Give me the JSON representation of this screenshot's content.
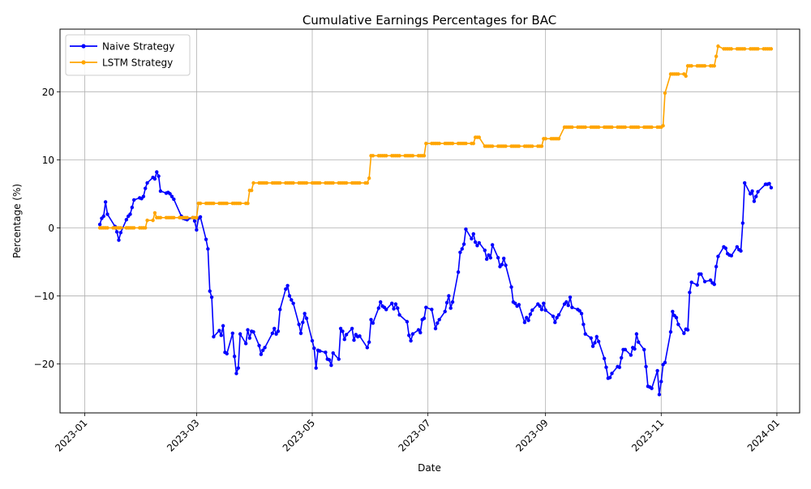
{
  "chart_data": {
    "type": "line",
    "title": "Cumulative Earnings Percentages for BAC",
    "xlabel": "Date",
    "ylabel": "Percentage (%)",
    "x_ticks": [
      "2023-01",
      "2023-03",
      "2023-05",
      "2023-07",
      "2023-09",
      "2023-11",
      "2024-01"
    ],
    "y_ticks": [
      -20,
      -10,
      0,
      10,
      20
    ],
    "xlim": [
      "2022-12-19",
      "2024-01-13"
    ],
    "ylim": [
      -27.2,
      29.2
    ],
    "grid": true,
    "legend_position": "upper-left",
    "series": [
      {
        "name": "Naive Strategy",
        "color": "#0000ff",
        "points": [
          [
            "2023-01-09",
            0.5
          ],
          [
            "2023-01-10",
            1.4
          ],
          [
            "2023-01-11",
            1.7
          ],
          [
            "2023-01-12",
            3.8
          ],
          [
            "2023-01-13",
            2.0
          ],
          [
            "2023-01-17",
            0.2
          ],
          [
            "2023-01-18",
            -0.6
          ],
          [
            "2023-01-19",
            -1.8
          ],
          [
            "2023-01-20",
            -0.7
          ],
          [
            "2023-01-23",
            1.2
          ],
          [
            "2023-01-24",
            1.7
          ],
          [
            "2023-01-25",
            2.0
          ],
          [
            "2023-01-26",
            3.0
          ],
          [
            "2023-01-27",
            4.1
          ],
          [
            "2023-01-30",
            4.4
          ],
          [
            "2023-01-31",
            4.3
          ],
          [
            "2023-02-01",
            4.6
          ],
          [
            "2023-02-02",
            5.8
          ],
          [
            "2023-02-03",
            6.6
          ],
          [
            "2023-02-06",
            7.4
          ],
          [
            "2023-02-07",
            7.2
          ],
          [
            "2023-02-08",
            8.2
          ],
          [
            "2023-02-09",
            7.6
          ],
          [
            "2023-02-10",
            5.4
          ],
          [
            "2023-02-13",
            5.1
          ],
          [
            "2023-02-14",
            5.2
          ],
          [
            "2023-02-15",
            5.0
          ],
          [
            "2023-02-16",
            4.6
          ],
          [
            "2023-02-17",
            4.2
          ],
          [
            "2023-02-21",
            1.7
          ],
          [
            "2023-02-22",
            1.4
          ],
          [
            "2023-02-23",
            1.3
          ],
          [
            "2023-02-24",
            1.2
          ],
          [
            "2023-02-27",
            1.5
          ],
          [
            "2023-02-28",
            1.0
          ],
          [
            "2023-03-01",
            -0.3
          ],
          [
            "2023-03-02",
            1.4
          ],
          [
            "2023-03-03",
            1.6
          ],
          [
            "2023-03-06",
            -1.7
          ],
          [
            "2023-03-07",
            -3.1
          ],
          [
            "2023-03-08",
            -9.3
          ],
          [
            "2023-03-09",
            -10.2
          ],
          [
            "2023-03-10",
            -16.0
          ],
          [
            "2023-03-13",
            -15.1
          ],
          [
            "2023-03-14",
            -15.8
          ],
          [
            "2023-03-15",
            -14.4
          ],
          [
            "2023-03-16",
            -18.3
          ],
          [
            "2023-03-17",
            -18.5
          ],
          [
            "2023-03-20",
            -15.5
          ],
          [
            "2023-03-21",
            -18.9
          ],
          [
            "2023-03-22",
            -21.4
          ],
          [
            "2023-03-23",
            -20.6
          ],
          [
            "2023-03-24",
            -15.6
          ],
          [
            "2023-03-27",
            -17.0
          ],
          [
            "2023-03-28",
            -15.0
          ],
          [
            "2023-03-29",
            -16.2
          ],
          [
            "2023-03-30",
            -15.2
          ],
          [
            "2023-03-31",
            -15.3
          ],
          [
            "2023-04-03",
            -17.3
          ],
          [
            "2023-04-04",
            -18.6
          ],
          [
            "2023-04-05",
            -18.0
          ],
          [
            "2023-04-06",
            -17.6
          ],
          [
            "2023-04-10",
            -15.5
          ],
          [
            "2023-04-11",
            -14.8
          ],
          [
            "2023-04-12",
            -15.6
          ],
          [
            "2023-04-13",
            -15.2
          ],
          [
            "2023-04-14",
            -12.0
          ],
          [
            "2023-04-17",
            -9.0
          ],
          [
            "2023-04-18",
            -8.5
          ],
          [
            "2023-04-19",
            -10.0
          ],
          [
            "2023-04-20",
            -10.6
          ],
          [
            "2023-04-21",
            -11.1
          ],
          [
            "2023-04-24",
            -14.2
          ],
          [
            "2023-04-25",
            -15.5
          ],
          [
            "2023-04-26",
            -13.9
          ],
          [
            "2023-04-27",
            -12.6
          ],
          [
            "2023-04-28",
            -13.3
          ],
          [
            "2023-05-01",
            -16.6
          ],
          [
            "2023-05-02",
            -17.7
          ],
          [
            "2023-05-03",
            -20.6
          ],
          [
            "2023-05-04",
            -18.0
          ],
          [
            "2023-05-05",
            -18.1
          ],
          [
            "2023-05-08",
            -18.3
          ],
          [
            "2023-05-09",
            -19.3
          ],
          [
            "2023-05-10",
            -19.4
          ],
          [
            "2023-05-11",
            -20.2
          ],
          [
            "2023-05-12",
            -18.4
          ],
          [
            "2023-05-15",
            -19.3
          ],
          [
            "2023-05-16",
            -14.8
          ],
          [
            "2023-05-17",
            -15.2
          ],
          [
            "2023-05-18",
            -16.4
          ],
          [
            "2023-05-19",
            -15.7
          ],
          [
            "2023-05-22",
            -14.8
          ],
          [
            "2023-05-23",
            -16.5
          ],
          [
            "2023-05-24",
            -15.7
          ],
          [
            "2023-05-25",
            -16.0
          ],
          [
            "2023-05-26",
            -15.9
          ],
          [
            "2023-05-30",
            -17.6
          ],
          [
            "2023-05-31",
            -16.8
          ],
          [
            "2023-06-01",
            -13.5
          ],
          [
            "2023-06-02",
            -14.0
          ],
          [
            "2023-06-05",
            -11.8
          ],
          [
            "2023-06-06",
            -10.9
          ],
          [
            "2023-06-07",
            -11.5
          ],
          [
            "2023-06-08",
            -11.7
          ],
          [
            "2023-06-09",
            -12.0
          ],
          [
            "2023-06-12",
            -11.1
          ],
          [
            "2023-06-13",
            -11.9
          ],
          [
            "2023-06-14",
            -11.2
          ],
          [
            "2023-06-15",
            -11.8
          ],
          [
            "2023-06-16",
            -12.8
          ],
          [
            "2023-06-20",
            -13.8
          ],
          [
            "2023-06-21",
            -15.8
          ],
          [
            "2023-06-22",
            -16.6
          ],
          [
            "2023-06-23",
            -15.6
          ],
          [
            "2023-06-26",
            -15.0
          ],
          [
            "2023-06-27",
            -15.4
          ],
          [
            "2023-06-28",
            -13.5
          ],
          [
            "2023-06-29",
            -13.3
          ],
          [
            "2023-06-30",
            -11.7
          ],
          [
            "2023-07-03",
            -12.0
          ],
          [
            "2023-07-05",
            -14.8
          ],
          [
            "2023-07-06",
            -14.0
          ],
          [
            "2023-07-07",
            -13.5
          ],
          [
            "2023-07-10",
            -12.3
          ],
          [
            "2023-07-11",
            -11.0
          ],
          [
            "2023-07-12",
            -10.0
          ],
          [
            "2023-07-13",
            -11.8
          ],
          [
            "2023-07-14",
            -10.9
          ],
          [
            "2023-07-17",
            -6.5
          ],
          [
            "2023-07-18",
            -3.6
          ],
          [
            "2023-07-19",
            -3.1
          ],
          [
            "2023-07-20",
            -2.4
          ],
          [
            "2023-07-21",
            -0.2
          ],
          [
            "2023-07-24",
            -1.6
          ],
          [
            "2023-07-25",
            -0.9
          ],
          [
            "2023-07-26",
            -2.1
          ],
          [
            "2023-07-27",
            -2.6
          ],
          [
            "2023-07-28",
            -2.2
          ],
          [
            "2023-07-31",
            -3.3
          ],
          [
            "2023-08-01",
            -4.6
          ],
          [
            "2023-08-02",
            -4.0
          ],
          [
            "2023-08-03",
            -4.4
          ],
          [
            "2023-08-04",
            -2.5
          ],
          [
            "2023-08-07",
            -4.4
          ],
          [
            "2023-08-08",
            -5.7
          ],
          [
            "2023-08-09",
            -5.4
          ],
          [
            "2023-08-10",
            -4.5
          ],
          [
            "2023-08-11",
            -5.5
          ],
          [
            "2023-08-14",
            -8.7
          ],
          [
            "2023-08-15",
            -10.9
          ],
          [
            "2023-08-16",
            -11.1
          ],
          [
            "2023-08-17",
            -11.5
          ],
          [
            "2023-08-18",
            -11.3
          ],
          [
            "2023-08-21",
            -13.9
          ],
          [
            "2023-08-22",
            -13.2
          ],
          [
            "2023-08-23",
            -13.6
          ],
          [
            "2023-08-24",
            -12.7
          ],
          [
            "2023-08-25",
            -12.1
          ],
          [
            "2023-08-28",
            -11.2
          ],
          [
            "2023-08-29",
            -11.5
          ],
          [
            "2023-08-30",
            -12.0
          ],
          [
            "2023-08-31",
            -11.1
          ],
          [
            "2023-09-01",
            -12.1
          ],
          [
            "2023-09-05",
            -13.0
          ],
          [
            "2023-09-06",
            -13.9
          ],
          [
            "2023-09-07",
            -13.2
          ],
          [
            "2023-09-08",
            -12.8
          ],
          [
            "2023-09-11",
            -11.2
          ],
          [
            "2023-09-12",
            -10.9
          ],
          [
            "2023-09-13",
            -11.4
          ],
          [
            "2023-09-14",
            -10.2
          ],
          [
            "2023-09-15",
            -11.7
          ],
          [
            "2023-09-18",
            -12.0
          ],
          [
            "2023-09-19",
            -12.2
          ],
          [
            "2023-09-20",
            -12.6
          ],
          [
            "2023-09-21",
            -14.2
          ],
          [
            "2023-09-22",
            -15.6
          ],
          [
            "2023-09-25",
            -16.2
          ],
          [
            "2023-09-26",
            -17.4
          ],
          [
            "2023-09-27",
            -16.9
          ],
          [
            "2023-09-28",
            -16.0
          ],
          [
            "2023-09-29",
            -16.7
          ],
          [
            "2023-10-02",
            -19.2
          ],
          [
            "2023-10-03",
            -20.5
          ],
          [
            "2023-10-04",
            -22.1
          ],
          [
            "2023-10-05",
            -22.0
          ],
          [
            "2023-10-06",
            -21.4
          ],
          [
            "2023-10-09",
            -20.4
          ],
          [
            "2023-10-10",
            -20.5
          ],
          [
            "2023-10-11",
            -19.1
          ],
          [
            "2023-10-12",
            -17.9
          ],
          [
            "2023-10-13",
            -17.9
          ],
          [
            "2023-10-16",
            -18.7
          ],
          [
            "2023-10-17",
            -17.6
          ],
          [
            "2023-10-18",
            -17.8
          ],
          [
            "2023-10-19",
            -15.6
          ],
          [
            "2023-10-20",
            -16.8
          ],
          [
            "2023-10-23",
            -17.9
          ],
          [
            "2023-10-24",
            -20.4
          ],
          [
            "2023-10-25",
            -23.3
          ],
          [
            "2023-10-26",
            -23.4
          ],
          [
            "2023-10-27",
            -23.6
          ],
          [
            "2023-10-30",
            -21.0
          ],
          [
            "2023-10-31",
            -24.5
          ],
          [
            "2023-11-01",
            -22.6
          ],
          [
            "2023-11-02",
            -20.1
          ],
          [
            "2023-11-03",
            -19.8
          ],
          [
            "2023-11-06",
            -15.3
          ],
          [
            "2023-11-07",
            -12.3
          ],
          [
            "2023-11-08",
            -12.9
          ],
          [
            "2023-11-09",
            -13.2
          ],
          [
            "2023-11-10",
            -14.2
          ],
          [
            "2023-11-13",
            -15.5
          ],
          [
            "2023-11-14",
            -14.9
          ],
          [
            "2023-11-15",
            -15.0
          ],
          [
            "2023-11-16",
            -9.5
          ],
          [
            "2023-11-17",
            -8.0
          ],
          [
            "2023-11-20",
            -8.4
          ],
          [
            "2023-11-21",
            -6.8
          ],
          [
            "2023-11-22",
            -6.8
          ],
          [
            "2023-11-24",
            -7.9
          ],
          [
            "2023-11-27",
            -7.7
          ],
          [
            "2023-11-28",
            -8.1
          ],
          [
            "2023-11-29",
            -8.3
          ],
          [
            "2023-11-30",
            -5.7
          ],
          [
            "2023-12-01",
            -4.2
          ],
          [
            "2023-12-04",
            -2.8
          ],
          [
            "2023-12-05",
            -3.0
          ],
          [
            "2023-12-06",
            -3.8
          ],
          [
            "2023-12-07",
            -4.0
          ],
          [
            "2023-12-08",
            -4.1
          ],
          [
            "2023-12-11",
            -2.8
          ],
          [
            "2023-12-12",
            -3.2
          ],
          [
            "2023-12-13",
            -3.4
          ],
          [
            "2023-12-14",
            0.7
          ],
          [
            "2023-12-15",
            6.6
          ],
          [
            "2023-12-18",
            5.0
          ],
          [
            "2023-12-19",
            5.4
          ],
          [
            "2023-12-20",
            3.9
          ],
          [
            "2023-12-21",
            4.6
          ],
          [
            "2023-12-22",
            5.3
          ],
          [
            "2023-12-26",
            6.4
          ],
          [
            "2023-12-27",
            6.4
          ],
          [
            "2023-12-28",
            6.5
          ],
          [
            "2023-12-29",
            5.9
          ]
        ]
      },
      {
        "name": "LSTM Strategy",
        "color": "#ffa500",
        "steps": [
          [
            "2023-01-09",
            0.0
          ],
          [
            "2023-02-03",
            1.1
          ],
          [
            "2023-02-07",
            2.2
          ],
          [
            "2023-02-08",
            1.5
          ],
          [
            "2023-02-13",
            1.5
          ],
          [
            "2023-02-20",
            1.5
          ],
          [
            "2023-03-01",
            1.5
          ],
          [
            "2023-03-02",
            3.6
          ],
          [
            "2023-03-28",
            3.6
          ],
          [
            "2023-03-29",
            5.5
          ],
          [
            "2023-03-31",
            6.6
          ],
          [
            "2023-05-30",
            6.6
          ],
          [
            "2023-05-31",
            7.3
          ],
          [
            "2023-06-01",
            10.6
          ],
          [
            "2023-06-29",
            10.6
          ],
          [
            "2023-06-30",
            12.4
          ],
          [
            "2023-07-25",
            12.4
          ],
          [
            "2023-07-26",
            13.3
          ],
          [
            "2023-07-31",
            12.0
          ],
          [
            "2023-08-29",
            12.0
          ],
          [
            "2023-08-31",
            13.1
          ],
          [
            "2023-09-07",
            13.1
          ],
          [
            "2023-09-11",
            14.8
          ],
          [
            "2023-11-02",
            15.0
          ],
          [
            "2023-11-03",
            19.8
          ],
          [
            "2023-11-06",
            22.6
          ],
          [
            "2023-11-13",
            22.6
          ],
          [
            "2023-11-14",
            22.3
          ],
          [
            "2023-11-15",
            23.8
          ],
          [
            "2023-11-29",
            23.8
          ],
          [
            "2023-11-30",
            25.2
          ],
          [
            "2023-12-01",
            26.7
          ],
          [
            "2023-12-04",
            26.3
          ],
          [
            "2023-12-29",
            26.3
          ]
        ]
      }
    ]
  }
}
